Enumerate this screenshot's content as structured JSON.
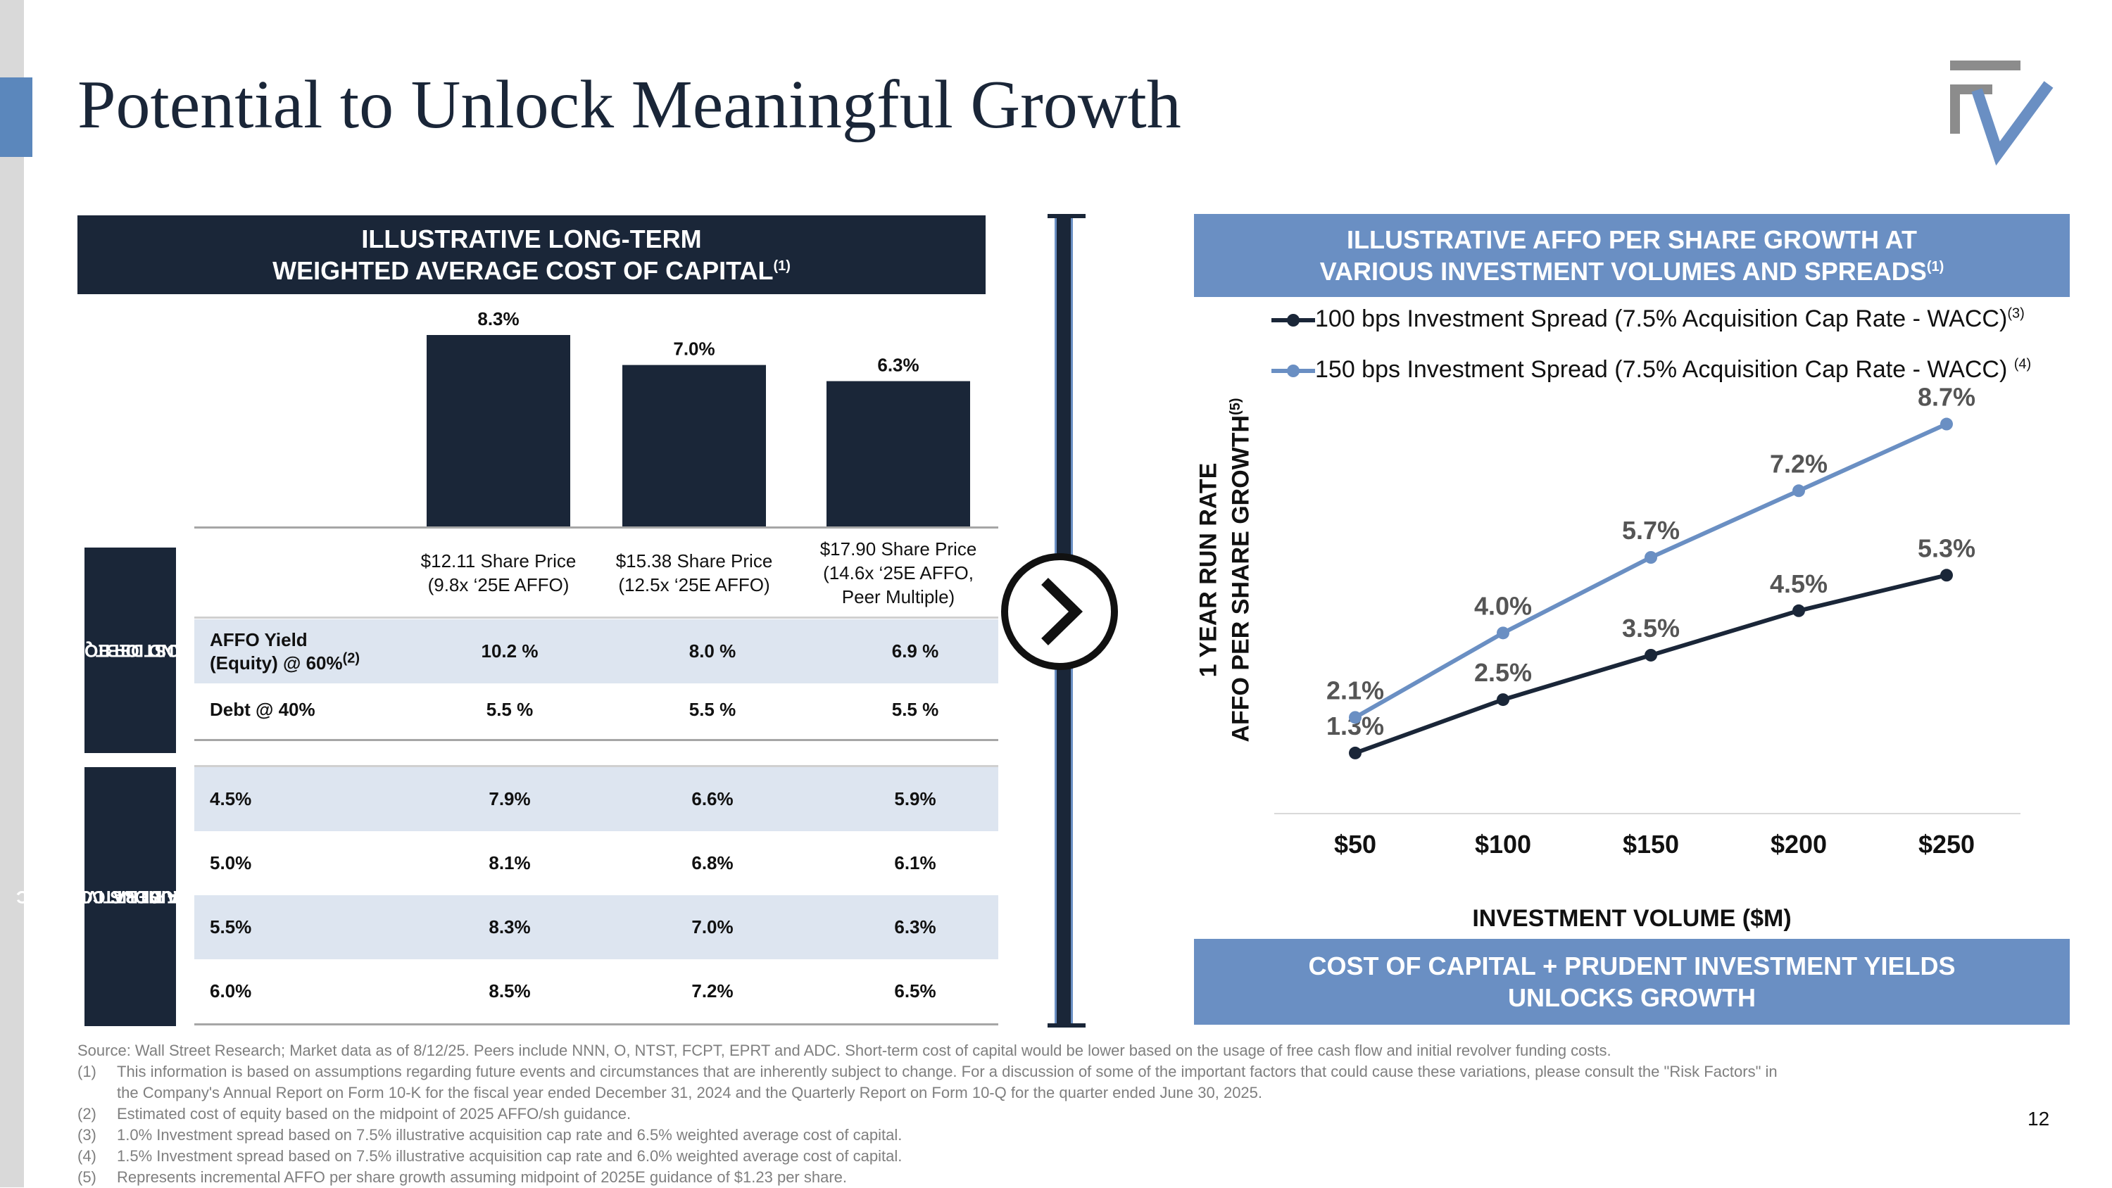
{
  "title": "Potential to Unlock Meaningful Growth",
  "page_number": "12",
  "colors": {
    "navy": "#1a2638",
    "blue": "#6a8fc3",
    "shade": "#dde5f0"
  },
  "left_panel": {
    "header_line1": "ILLUSTRATIVE LONG-TERM",
    "header_line2": "WEIGHTED AVERAGE COST OF CAPITAL",
    "header_sup": "(1)",
    "side_label_1": [
      "COST OF EQUITY",
      "AND DEBT"
    ],
    "side_label_2": [
      "ILLUSTRATIVE WACC",
      "AT VARIOUS COSTS",
      "OF DEBT"
    ],
    "share_prices": [
      [
        "$12.11 Share Price",
        "(9.8x ‘25E AFFO)"
      ],
      [
        "$15.38 Share Price",
        "(12.5x ‘25E AFFO)"
      ],
      [
        "$17.90 Share Price",
        "(14.6x ‘25E AFFO,",
        "Peer Multiple)"
      ]
    ],
    "affo_label_line1": "AFFO Yield",
    "affo_label_line2": "(Equity) @ 60%",
    "affo_label_sup": "(2)",
    "affo_values": [
      "10.2 %",
      "8.0 %",
      "6.9 %"
    ],
    "debt_label": "Debt @ 40%",
    "debt_values": [
      "5.5 %",
      "5.5 %",
      "5.5 %"
    ],
    "wacc_rows": [
      {
        "label": "4.5%",
        "values": [
          "7.9%",
          "6.6%",
          "5.9%"
        ]
      },
      {
        "label": "5.0%",
        "values": [
          "8.1%",
          "6.8%",
          "6.1%"
        ]
      },
      {
        "label": "5.5%",
        "values": [
          "8.3%",
          "7.0%",
          "6.3%"
        ]
      },
      {
        "label": "6.0%",
        "values": [
          "8.5%",
          "7.2%",
          "6.5%"
        ]
      }
    ]
  },
  "right_panel": {
    "header_line1": "ILLUSTRATIVE AFFO PER SHARE GROWTH AT",
    "header_line2": "VARIOUS INVESTMENT VOLUMES AND SPREADS",
    "header_sup": "(1)",
    "footer_line1": "COST OF CAPITAL + PRUDENT INVESTMENT YIELDS",
    "footer_line2": "UNLOCKS GROWTH",
    "legend_sup_1": "(3)",
    "legend_sup_2": "(4)",
    "ylabel_sup": "(5)"
  },
  "chart_data": [
    {
      "type": "bar",
      "title": "Illustrative Long-Term Weighted Average Cost of Capital",
      "categories": [
        "$12.11 Share Price",
        "$15.38 Share Price",
        "$17.90 Share Price"
      ],
      "values": [
        8.3,
        7.0,
        6.3
      ],
      "value_labels": [
        "8.3%",
        "7.0%",
        "6.3%"
      ],
      "ylim": [
        0,
        10
      ]
    },
    {
      "type": "line",
      "title": "Illustrative AFFO per Share Growth at Various Investment Volumes and Spreads",
      "x": [
        "$50",
        "$100",
        "$150",
        "$200",
        "$250"
      ],
      "xlabel": "INVESTMENT VOLUME ($M)",
      "ylabel_line1": "1 YEAR RUN RATE",
      "ylabel_line2": "AFFO PER SHARE GROWTH",
      "ylim": [
        0,
        9.5
      ],
      "series": [
        {
          "name": "100 bps Investment Spread (7.5% Acquisition Cap Rate - WACC)",
          "values": [
            1.3,
            2.5,
            3.5,
            4.5,
            5.3
          ],
          "labels": [
            "1.3%",
            "2.5%",
            "3.5%",
            "4.5%",
            "5.3%"
          ],
          "color": "#1a2638"
        },
        {
          "name": "150 bps Investment Spread (7.5% Acquisition  Cap Rate - WACC)",
          "values": [
            2.1,
            4.0,
            5.7,
            7.2,
            8.7
          ],
          "labels": [
            "2.1%",
            "4.0%",
            "5.7%",
            "7.2%",
            "8.7%"
          ],
          "color": "#6a8fc3"
        }
      ]
    }
  ],
  "footnotes": {
    "source": "Source: Wall Street Research; Market data as of 8/12/25. Peers include NNN, O, NTST, FCPT, EPRT and ADC. Short-term cost of capital would be lower based on the usage of free cash flow and initial revolver funding costs.",
    "items": [
      {
        "num": "(1)",
        "lines": [
          "This information is based on assumptions regarding future events and circumstances that are inherently subject to change. For a discussion of some of the important factors that could cause these variations, please consult the \"Risk Factors\" in",
          "the Company's Annual Report on Form 10-K for the fiscal year ended December 31, 2024 and the Quarterly Report on Form 10-Q for the quarter ended June 30, 2025."
        ]
      },
      {
        "num": "(2)",
        "lines": [
          "Estimated cost of equity based on the midpoint of 2025 AFFO/sh guidance."
        ]
      },
      {
        "num": "(3)",
        "lines": [
          "1.0% Investment spread based on 7.5% illustrative acquisition cap rate and 6.5% weighted average cost of capital."
        ]
      },
      {
        "num": "(4)",
        "lines": [
          "1.5% Investment spread based on 7.5% illustrative acquisition cap rate and 6.0% weighted average cost of capital."
        ]
      },
      {
        "num": "(5)",
        "lines": [
          "Represents incremental AFFO per share growth assuming midpoint of 2025E guidance of $1.23 per share."
        ]
      }
    ]
  }
}
